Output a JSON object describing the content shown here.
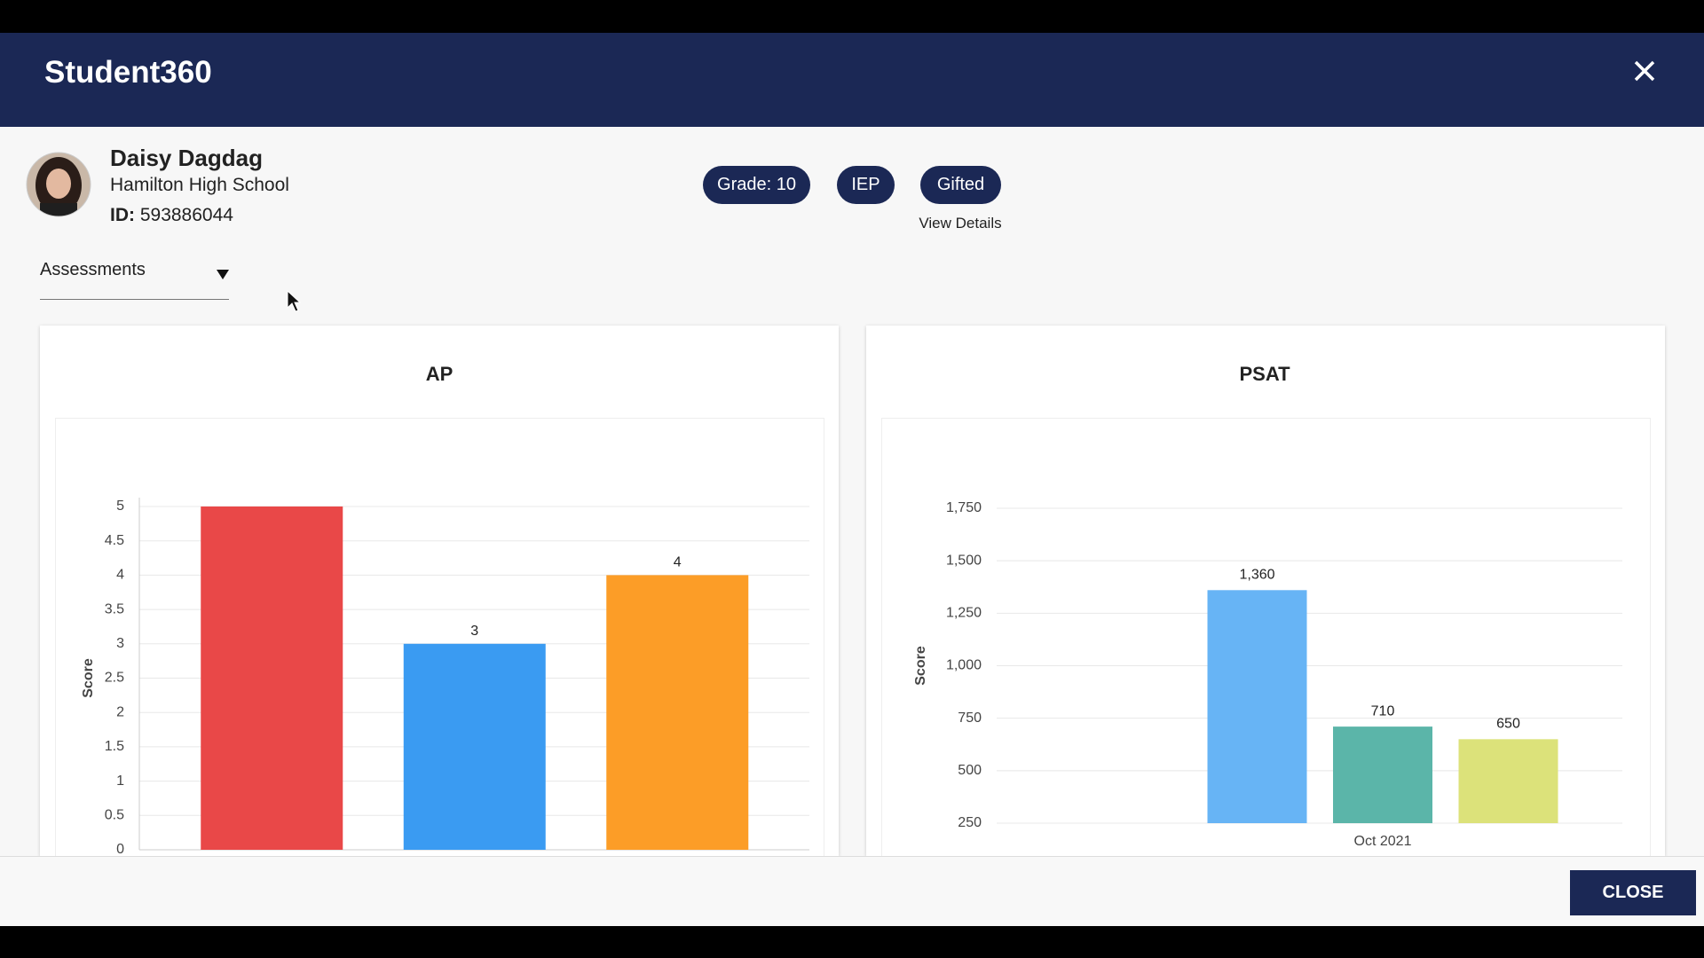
{
  "header": {
    "title": "Student360"
  },
  "student": {
    "name": "Daisy Dagdag",
    "school": "Hamilton High School",
    "id_label": "ID:",
    "id": "593886044"
  },
  "chips": [
    "Grade: 10",
    "IEP",
    "Gifted"
  ],
  "view_details": "View Details",
  "dropdown": "Assessments",
  "footer": {
    "button": "CLOSE"
  },
  "chart_data": [
    {
      "type": "bar",
      "title": "AP",
      "y_label": "Score",
      "values": [
        5,
        3,
        4
      ],
      "value_labels": [
        null,
        "3",
        "4"
      ],
      "colors": [
        "#e94848",
        "#3a9bf2",
        "#fc9d27"
      ],
      "ylim": [
        0,
        5
      ],
      "yticks": [
        0,
        0.5,
        1,
        1.5,
        2,
        2.5,
        3,
        3.5,
        4,
        4.5,
        5
      ],
      "grid": true
    },
    {
      "type": "grouped_bar",
      "title": "PSAT",
      "y_label": "Score",
      "categories": [
        "Oct 2021"
      ],
      "series": [
        {
          "color": "#67b4f5",
          "values": [
            1360
          ],
          "value_labels": [
            "1,360"
          ]
        },
        {
          "color": "#5bb5a9",
          "values": [
            710
          ]
        },
        {
          "color": "#dce27a",
          "values": [
            650
          ]
        }
      ],
      "ylim": [
        250,
        1750
      ],
      "yticks": [
        250,
        500,
        750,
        {
          "value": 1000,
          "label": "1,000"
        },
        {
          "value": 1250,
          "label": "1,250"
        },
        {
          "value": 1500,
          "label": "1,500"
        },
        {
          "value": 1750,
          "label": "1,750"
        }
      ],
      "grid": true
    }
  ]
}
